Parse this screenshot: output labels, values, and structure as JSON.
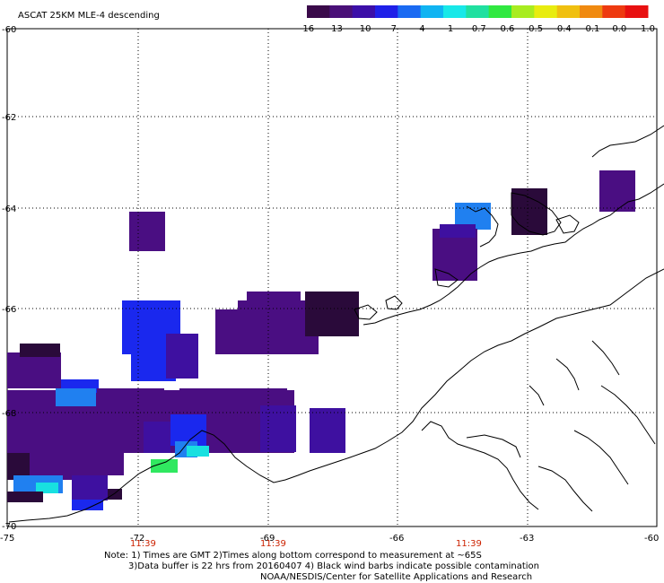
{
  "title": "ASCAT 25KM MLE-4 descending",
  "colorbar": {
    "colors": [
      "#3a0a4a",
      "#4a1078",
      "#3c0fa8",
      "#1f20e8",
      "#1a6af2",
      "#10b4f2",
      "#18e8e8",
      "#20e0a0",
      "#30e840",
      "#a8ec20",
      "#e8ec10",
      "#f0c010",
      "#f08a10",
      "#ee3a10",
      "#e81010"
    ],
    "labels": [
      "-16",
      "-13",
      "-10",
      "-7",
      "-4",
      "-1",
      "-0.7",
      "-0.6",
      "-0.5",
      "-0.4",
      "-0.1",
      "0.0",
      "1.0"
    ]
  },
  "axes": {
    "lon_labels": [
      "-75",
      "-72",
      "-69",
      "-66",
      "-63",
      "-60"
    ],
    "lat_labels": [
      "-60",
      "-62",
      "-64",
      "-66",
      "-68",
      "-70"
    ]
  },
  "times": [
    "11:39",
    "11:39",
    "11:39"
  ],
  "notes": [
    "Note: 1) Times are GMT 2)Times along bottom correspond to measurement at ~65S",
    "3)Data buffer is 22 hrs from 20160407 4) Black wind barbs indicate possible contamination",
    "NOAA/NESDIS/Center for Satellite Applications and Research"
  ],
  "palette": {
    "dark": "#2a0a3a",
    "purple": "#4a0e82",
    "violet": "#3e10a0",
    "blue": "#1a28ee",
    "lightblue": "#2080f0",
    "cyan": "#18e0e0",
    "green": "#30e860"
  }
}
